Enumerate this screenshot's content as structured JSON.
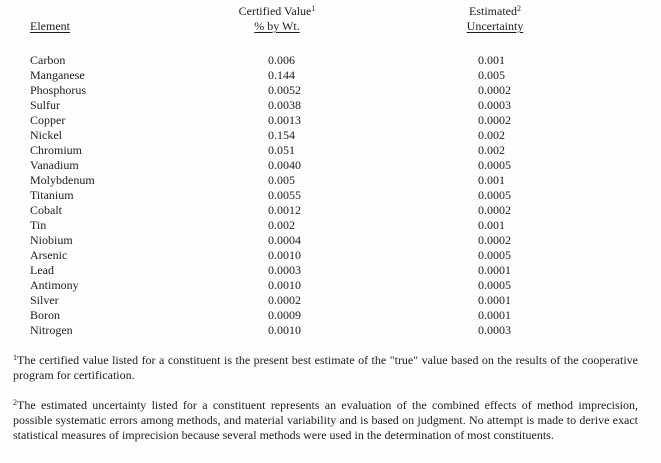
{
  "colors": {
    "background": "#fefefe",
    "text": "#1c1c1c"
  },
  "table": {
    "headers": {
      "element": "Element",
      "certified_line1": "Certified Value",
      "certified_sup": "1",
      "certified_line2": "% by Wt.",
      "estimated_line1": "Estimated",
      "estimated_sup": "2",
      "estimated_line2": "Uncertainty"
    },
    "rows": [
      {
        "element": "Carbon",
        "value": "0.006",
        "uncertainty": "0.001"
      },
      {
        "element": "Manganese",
        "value": "0.144",
        "uncertainty": "0.005"
      },
      {
        "element": "Phosphorus",
        "value": "0.0052",
        "uncertainty": "0.0002"
      },
      {
        "element": "Sulfur",
        "value": "0.0038",
        "uncertainty": "0.0003"
      },
      {
        "element": "Copper",
        "value": "0.0013",
        "uncertainty": "0.0002"
      },
      {
        "element": "Nickel",
        "value": "0.154",
        "uncertainty": "0.002"
      },
      {
        "element": "Chromium",
        "value": "0.051",
        "uncertainty": "0.002"
      },
      {
        "element": "Vanadium",
        "value": "0.0040",
        "uncertainty": "0.0005"
      },
      {
        "element": "Molybdenum",
        "value": "0.005",
        "uncertainty": "0.001"
      },
      {
        "element": "Titanium",
        "value": "0.0055",
        "uncertainty": "0.0005"
      },
      {
        "element": "Cobalt",
        "value": "0.0012",
        "uncertainty": "0.0002"
      },
      {
        "element": "Tin",
        "value": "0.002",
        "uncertainty": "0.001"
      },
      {
        "element": "Niobium",
        "value": "0.0004",
        "uncertainty": "0.0002"
      },
      {
        "element": "Arsenic",
        "value": "0.0010",
        "uncertainty": "0.0005"
      },
      {
        "element": "Lead",
        "value": "0.0003",
        "uncertainty": "0.0001"
      },
      {
        "element": "Antimony",
        "value": "0.0010",
        "uncertainty": "0.0005"
      },
      {
        "element": "Silver",
        "value": "0.0002",
        "uncertainty": "0.0001"
      },
      {
        "element": "Boron",
        "value": "0.0009",
        "uncertainty": "0.0001"
      },
      {
        "element": "Nitrogen",
        "value": "0.0010",
        "uncertainty": "0.0003"
      }
    ]
  },
  "footnotes": [
    {
      "sup": "1",
      "text": "The certified value listed for a constituent is the present best estimate of the \"true\" value based on the results  of the cooperative program for certification."
    },
    {
      "sup": "2",
      "text": "The estimated uncertainty listed for a constituent represents an evaluation of the combined effects of method imprecision, possible systematic errors among methods, and material variability and is based on judgment.  No attempt is made to derive exact statistical measures of imprecision because several methods were used in the determination of most constituents."
    }
  ]
}
